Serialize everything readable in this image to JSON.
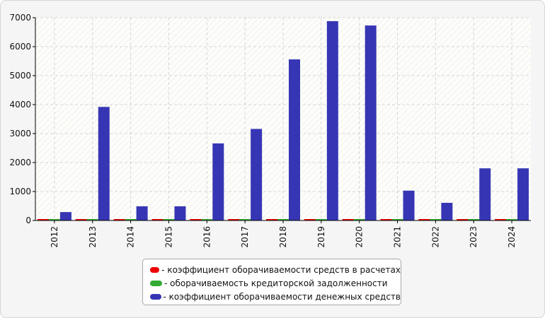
{
  "chart_data": {
    "type": "bar",
    "categories": [
      "2012",
      "2013",
      "2014",
      "2015",
      "2016",
      "2017",
      "2018",
      "2019",
      "2020",
      "2021",
      "2022",
      "2023",
      "2024"
    ],
    "series": [
      {
        "name": "- коэффициент оборачиваемости средств в расчетах",
        "color": "#ee0000",
        "values": [
          10,
          10,
          10,
          10,
          10,
          10,
          10,
          10,
          10,
          10,
          10,
          10,
          10
        ]
      },
      {
        "name": "- оборачиваемость кредиторской задолженности",
        "color": "#33aa33",
        "values": [
          10,
          10,
          10,
          10,
          10,
          10,
          10,
          10,
          10,
          10,
          10,
          10,
          10
        ]
      },
      {
        "name": "- коэффициент оборачиваемости денежных средств",
        "color": "#3636b4",
        "values": [
          290,
          3920,
          490,
          490,
          2660,
          3160,
          5560,
          6880,
          6730,
          1030,
          610,
          1800,
          1800
        ]
      }
    ],
    "ylim": [
      0,
      7000
    ],
    "yticks": [
      0,
      1000,
      2000,
      3000,
      4000,
      5000,
      6000,
      7000
    ],
    "grid": true,
    "legend_position": "bottom"
  }
}
